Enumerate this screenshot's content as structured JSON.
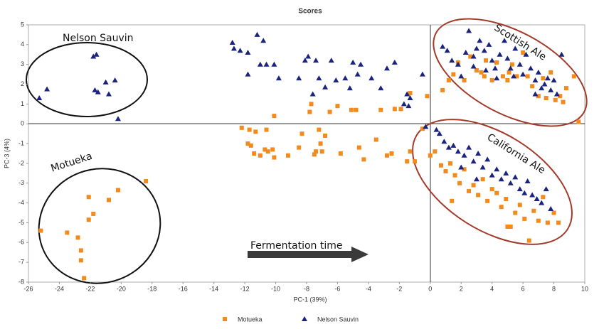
{
  "chart_data": {
    "type": "scatter",
    "title": "Scores",
    "x_label": "PC-1 (39%)",
    "y_label": "PC-3 (4%)",
    "xlim": [
      -26,
      10
    ],
    "ylim": [
      -8,
      5
    ],
    "xticks": [
      -26,
      -24,
      -22,
      -20,
      -18,
      -16,
      -14,
      -12,
      -10,
      -8,
      -6,
      -4,
      -2,
      0,
      2,
      4,
      6,
      8,
      10
    ],
    "yticks": [
      -8,
      -7,
      -6,
      -5,
      -4,
      -3,
      -2,
      -1,
      0,
      1,
      2,
      3,
      4,
      5
    ],
    "annotations": [
      "Nelson Sauvin",
      "Motueka",
      "Scottish Ale",
      "California Ale",
      "Fermentation time"
    ],
    "legend": "bottom",
    "series": [
      {
        "name": "Motueka",
        "color": "#f28a1c",
        "marker": "square",
        "x": [
          -18.4,
          -20.2,
          -20.8,
          -21.8,
          -22.1,
          -22.1,
          -23.5,
          -25.2,
          -22.8,
          -22.6,
          -22.6,
          -22.4,
          -12.2,
          -11.7,
          -11.3,
          -10.6,
          -10.1,
          -11.8,
          -11.6,
          -11.4,
          -11,
          -10.7,
          -10.5,
          -10.2,
          -10.1,
          -9.2,
          -8.3,
          -8.5,
          -7.7,
          -7.8,
          -7.2,
          -7.1,
          -6.8,
          -7,
          -7.4,
          -7.5,
          -6.5,
          -6,
          -5.8,
          -5.1,
          -4.8,
          -4.3,
          -4.6,
          -3.5,
          -3.2,
          -2.8,
          -2.3,
          -1.9,
          -2.5,
          -1.5,
          -1.3,
          -1,
          -0.5,
          -0.2,
          0.8,
          1.2,
          1.5,
          1.8,
          2.2,
          2.6,
          3,
          3.3,
          3.6,
          4,
          4.3,
          4.7,
          5,
          5.3,
          5.6,
          6,
          6.3,
          6.6,
          7,
          7.3,
          7.5,
          7.8,
          8.1,
          8.4,
          8.6,
          9.3,
          9.6,
          8.8,
          5.1,
          3.5,
          -1.3,
          0,
          0.3,
          0.7,
          1,
          1.3,
          1.6,
          1.9,
          2.2,
          2.5,
          2.8,
          3.1,
          3.4,
          3.7,
          4,
          4.3,
          4.6,
          4.9,
          5.2,
          5.5,
          5.8,
          6.1,
          6.4,
          6.7,
          7,
          7.3,
          7.6,
          8,
          8.3,
          5,
          1.4
        ],
        "values": [
          -2.9,
          -3.35,
          -3.85,
          -4.55,
          -4.85,
          -3.7,
          -5.5,
          -5.4,
          -5.75,
          -6.4,
          -6.9,
          -7.8,
          -0.2,
          -0.3,
          -0.4,
          -0.3,
          0.4,
          -1,
          -1.1,
          -1.5,
          -1.6,
          -1.3,
          -1.4,
          -1.3,
          -1.7,
          -1.6,
          -0.5,
          -1.2,
          1,
          0.6,
          -0.3,
          -1,
          -0.6,
          -1.4,
          -1.4,
          -1.55,
          0.6,
          0.9,
          -1.5,
          0.7,
          0.7,
          -1.8,
          -1.2,
          -0.8,
          0.7,
          -1.6,
          0.75,
          0.75,
          -1.5,
          -1.9,
          1.55,
          -1.9,
          -0.25,
          1.4,
          1.7,
          2.2,
          2.5,
          3.1,
          2.2,
          3.4,
          2.7,
          2.6,
          3.2,
          2.2,
          3.1,
          2.4,
          2.2,
          3,
          2.4,
          3.6,
          2.4,
          1.9,
          1.4,
          2.3,
          1.3,
          2.6,
          1.2,
          1.4,
          1.1,
          2.4,
          0.1,
          1.8,
          2.6,
          2.4,
          -1.4,
          -1.6,
          -1.4,
          -2.1,
          -2.4,
          -2,
          -2.6,
          -3,
          -2.3,
          -3.4,
          -3.1,
          -3.6,
          -2.8,
          -3.9,
          -3.3,
          -3.5,
          -4.2,
          -3.8,
          -5.2,
          -4.5,
          -4.1,
          -4.8,
          -5.9,
          -4.4,
          -4.9,
          -3.7,
          -5,
          -4.5,
          -5,
          -5.2,
          -3.9
        ]
      },
      {
        "name": "Nelson Sauvin",
        "color": "#1a237e",
        "marker": "triangle",
        "x": [
          -25.3,
          -24.8,
          -21.8,
          -21.6,
          -21.5,
          -21.7,
          -21,
          -20.8,
          -20.4,
          -20.2,
          -12.8,
          -12.7,
          -12.3,
          -11.8,
          -11.2,
          -10.8,
          -11,
          -10.6,
          -10.1,
          -11.8,
          -9.8,
          -8.5,
          -8.1,
          -7.9,
          -7.4,
          -7.2,
          -6.8,
          -6.1,
          -6.4,
          -5.5,
          -5,
          -4.7,
          -4.5,
          -3.8,
          -3.2,
          -2.8,
          -2.3,
          -1.5,
          -1.4,
          -1.7,
          -1.3,
          -0.5,
          -0.3,
          -7.6,
          -5.2,
          0.8,
          1.1,
          1.4,
          1.8,
          2,
          2.3,
          2.5,
          2.8,
          3,
          3.2,
          3.5,
          3.8,
          4,
          4.2,
          4.5,
          4.8,
          5,
          5.2,
          5.5,
          5.8,
          6,
          6.2,
          6.5,
          6.8,
          7,
          7.2,
          7.4,
          7.6,
          7.8,
          8,
          8.2,
          8.5,
          4.3,
          6.8,
          5.4,
          3.6,
          2.8,
          0.4,
          0.6,
          0.9,
          1.2,
          1.5,
          1.8,
          2.2,
          2.5,
          2.8,
          3.1,
          3.4,
          3.7,
          4,
          4.3,
          4.6,
          4.9,
          5.2,
          5.5,
          5.8,
          6.1,
          6.3,
          6.6,
          6.9,
          7.2,
          7.5,
          7.8,
          3,
          2
        ],
        "values": [
          1.3,
          1.75,
          3.4,
          3.5,
          1.6,
          1.7,
          2.1,
          1.5,
          2.2,
          0.25,
          4.1,
          3.8,
          3.7,
          3.6,
          4.5,
          4.2,
          3,
          3,
          3,
          2.5,
          2.3,
          2.3,
          3.2,
          3.4,
          3.2,
          2.3,
          1.85,
          2.2,
          3.2,
          2.3,
          3.1,
          2.5,
          3,
          2.3,
          1.8,
          2.8,
          3.1,
          1.5,
          0.9,
          1,
          1.3,
          2.5,
          -0.15,
          1.5,
          1.8,
          3.9,
          3.7,
          3.2,
          3,
          2.4,
          3.6,
          4.7,
          3.4,
          3.8,
          4.2,
          3.7,
          4,
          3.2,
          2.8,
          3.5,
          4.2,
          3.3,
          2.8,
          3.8,
          3,
          2.5,
          3.5,
          2.8,
          2.2,
          2.6,
          1.8,
          2,
          2.3,
          1.7,
          2.2,
          1.5,
          3.5,
          2.3,
          1.5,
          2.4,
          2.7,
          2.9,
          -0.3,
          -0.5,
          -0.9,
          -1.2,
          -1.1,
          -1.4,
          -1.6,
          -1.2,
          -1.9,
          -1.5,
          -2.2,
          -1.8,
          -2.6,
          -2.3,
          -2.8,
          -2.5,
          -3,
          -2.7,
          -3.3,
          -3.5,
          -2.9,
          -3.6,
          -3.8,
          -4,
          -3.3,
          -4.3,
          -2.8,
          -2.2
        ]
      }
    ]
  }
}
